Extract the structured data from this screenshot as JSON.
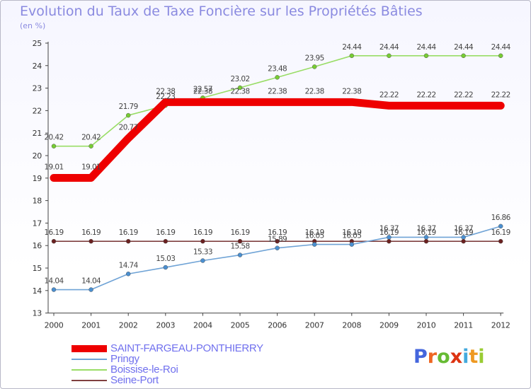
{
  "chart_data": {
    "type": "line",
    "title": "Evolution du Taux de Taxe Foncière sur les Propriétés Bâties",
    "ylabel": "(en %)",
    "xlabel": "",
    "categories": [
      "2000",
      "2001",
      "2002",
      "2003",
      "2004",
      "2005",
      "2006",
      "2007",
      "2008",
      "2009",
      "2010",
      "2011",
      "2012"
    ],
    "ylim": [
      13,
      25
    ],
    "yticks": [
      "13",
      "14",
      "15",
      "16",
      "17",
      "18",
      "19",
      "20",
      "21",
      "22",
      "23",
      "24",
      "25"
    ],
    "grid": false,
    "series": [
      {
        "name": "SAINT-FARGEAU-PONTHIERRY",
        "color": "#ee0000",
        "values": [
          19.01,
          19.01,
          20.77,
          22.38,
          22.38,
          22.38,
          22.38,
          22.38,
          22.38,
          22.22,
          22.22,
          22.22,
          22.22
        ],
        "labels": [
          "19.01",
          "19.01",
          "20.77",
          "22.38",
          "22.38",
          "22.38",
          "22.38",
          "22.38",
          "22.38",
          "22.22",
          "22.22",
          "22.22",
          "22.22"
        ]
      },
      {
        "name": "Pringy",
        "color": "#6fa3d6",
        "point_color": "#4a8fd0",
        "values": [
          14.04,
          14.04,
          14.74,
          15.03,
          15.33,
          15.58,
          15.89,
          16.05,
          16.05,
          16.37,
          16.37,
          16.37,
          16.86
        ],
        "labels": [
          "14.04",
          "14.04",
          "14.74",
          "15.03",
          "15.33",
          "15.58",
          "15.89",
          "16.05",
          "16.05",
          "16.37",
          "16.37",
          "16.37",
          "16.86"
        ]
      },
      {
        "name": "Boissise-le-Roi",
        "color": "#99dd66",
        "point_color": "#77cc33",
        "values": [
          20.42,
          20.42,
          21.79,
          22.23,
          22.57,
          23.02,
          23.48,
          23.95,
          24.44,
          24.44,
          24.44,
          24.44,
          24.44
        ],
        "labels": [
          "20.42",
          "20.42",
          "21.79",
          "22.23",
          "22.57",
          "23.02",
          "23.48",
          "23.95",
          "24.44",
          "24.44",
          "24.44",
          "24.44",
          "24.44"
        ]
      },
      {
        "name": "Seine-Port",
        "color": "#804040",
        "point_color": "#6a2020",
        "values": [
          16.19,
          16.19,
          16.19,
          16.19,
          16.19,
          16.19,
          16.19,
          16.19,
          16.19,
          16.19,
          16.19,
          16.19,
          16.19
        ],
        "labels": [
          "16.19",
          "16.19",
          "16.19",
          "16.19",
          "16.19",
          "16.19",
          "16.19",
          "16.19",
          "16.19",
          "16.19",
          "16.19",
          "16.19",
          "16.19"
        ]
      }
    ]
  },
  "logo": {
    "text": "Proxiti",
    "letter_colors": [
      "#4466dd",
      "#ee6622",
      "#66bb33",
      "#dd3311",
      "#44aadd",
      "#ee9922",
      "#99cc33"
    ]
  }
}
